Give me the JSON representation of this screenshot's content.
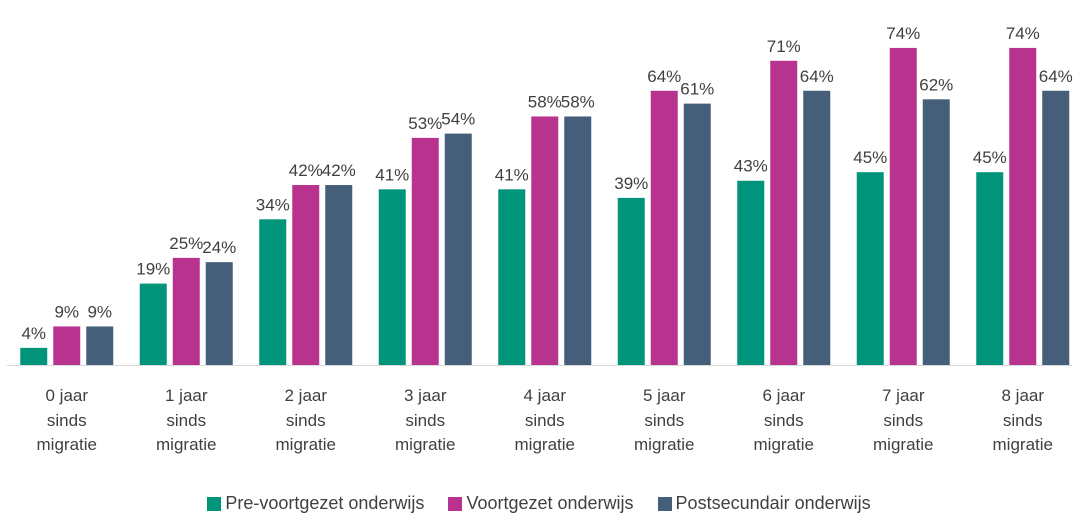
{
  "chart_data": {
    "type": "bar",
    "categories": [
      "0 jaar sinds migratie",
      "1 jaar sinds migratie",
      "2 jaar sinds migratie",
      "3 jaar sinds migratie",
      "4 jaar sinds migratie",
      "5 jaar sinds migratie",
      "6 jaar sinds migratie",
      "7 jaar sinds migratie",
      "8 jaar sinds migratie"
    ],
    "series": [
      {
        "name": "Pre-voortgezet onderwijs",
        "color": "#00957a",
        "values": [
          4,
          19,
          34,
          41,
          41,
          39,
          43,
          45,
          45
        ],
        "value_labels": [
          "4%",
          "19%",
          "34%",
          "41%",
          "41%",
          "39%",
          "43%",
          "45%",
          "45%"
        ]
      },
      {
        "name": "Voortgezet onderwijs",
        "color": "#b8338e",
        "values": [
          9,
          25,
          42,
          53,
          58,
          64,
          71,
          74,
          74
        ],
        "value_labels": [
          "9%",
          "25%",
          "42%",
          "53%",
          "58%",
          "64%",
          "71%",
          "74%",
          "74%"
        ]
      },
      {
        "name": "Postsecundair onderwijs",
        "color": "#455e7a",
        "values": [
          9,
          24,
          42,
          54,
          58,
          61,
          64,
          62,
          64
        ],
        "value_labels": [
          "9%",
          "24%",
          "42%",
          "54%",
          "58%",
          "61%",
          "64%",
          "62%",
          "64%"
        ]
      }
    ],
    "legend": "bottom"
  }
}
